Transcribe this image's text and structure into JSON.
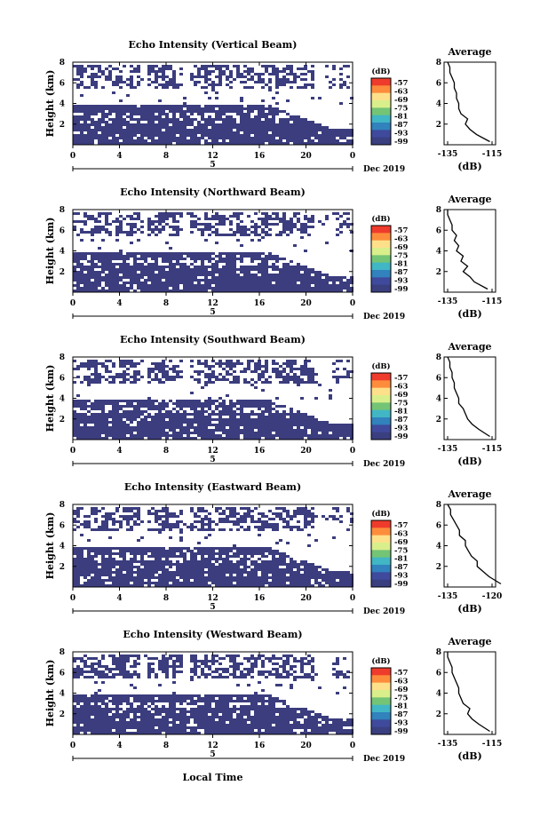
{
  "figure": {
    "xlabel": "Local Time",
    "date_label": "Dec 2019",
    "day_label": "5",
    "profile_title": "Average",
    "profile_xlabel": "(dB)",
    "colorbar_unit": "(dB)",
    "colorbar_ticks": [
      "-57",
      "-63",
      "-69",
      "-75",
      "-81",
      "-87",
      "-93",
      "-99"
    ],
    "colorbar_colors": [
      "#ef3b2c",
      "#fd8d3c",
      "#fee08b",
      "#d9ef8b",
      "#74c476",
      "#41b6c4",
      "#3182bd",
      "#3f4a9c",
      "#3a3f80"
    ],
    "echo_color": "#3b3d7e"
  },
  "chart_data": [
    {
      "type": "heatmap",
      "title": "Echo Intensity (Vertical Beam)",
      "ylabel": "Height (km)",
      "x_ticks": [
        "0",
        "4",
        "8",
        "12",
        "16",
        "20",
        "0"
      ],
      "y_ticks": [
        "8",
        "6",
        "4",
        "2"
      ],
      "xlim": [
        0,
        24
      ],
      "ylim": [
        0,
        8
      ],
      "profile": {
        "xlim": [
          -135,
          -115
        ],
        "x_ticks": [
          "-135",
          "-115"
        ],
        "y_ticks": [
          "8",
          "6",
          "4",
          "2"
        ],
        "height_km": [
          0.3,
          1.0,
          1.5,
          2.0,
          2.5,
          3.0,
          3.5,
          4.0,
          4.5,
          5.0,
          5.5,
          6.0,
          6.5,
          7.0,
          7.5,
          8.0
        ],
        "value_db": [
          -116,
          -122,
          -125,
          -127,
          -126,
          -129,
          -130,
          -130,
          -131,
          -131,
          -132,
          -132,
          -133,
          -134,
          -134,
          -135
        ]
      }
    },
    {
      "type": "heatmap",
      "title": "Echo Intensity (Northward Beam)",
      "ylabel": "Height (km)",
      "x_ticks": [
        "0",
        "4",
        "8",
        "12",
        "16",
        "20",
        "0"
      ],
      "y_ticks": [
        "8",
        "6",
        "4",
        "2"
      ],
      "xlim": [
        0,
        24
      ],
      "ylim": [
        0,
        8
      ],
      "profile": {
        "xlim": [
          -135,
          -115
        ],
        "x_ticks": [
          "-135",
          "-115"
        ],
        "y_ticks": [
          "8",
          "6",
          "4",
          "2"
        ],
        "height_km": [
          0.3,
          1.0,
          1.5,
          2.0,
          2.5,
          3.0,
          3.5,
          4.0,
          4.5,
          5.0,
          5.5,
          6.0,
          6.5,
          7.0,
          7.5,
          8.0
        ],
        "value_db": [
          -117,
          -123,
          -125,
          -128,
          -126,
          -129,
          -128,
          -131,
          -130,
          -132,
          -131,
          -133,
          -133,
          -134,
          -135,
          -135
        ]
      }
    },
    {
      "type": "heatmap",
      "title": "Echo Intensity (Southward Beam)",
      "ylabel": "Height (km)",
      "x_ticks": [
        "0",
        "4",
        "8",
        "12",
        "16",
        "20",
        "0"
      ],
      "y_ticks": [
        "8",
        "6",
        "4",
        "2"
      ],
      "xlim": [
        0,
        24
      ],
      "ylim": [
        0,
        8
      ],
      "profile": {
        "xlim": [
          -135,
          -115
        ],
        "x_ticks": [
          "-135",
          "-115"
        ],
        "y_ticks": [
          "8",
          "6",
          "4",
          "2"
        ],
        "height_km": [
          0.3,
          1.0,
          1.5,
          2.0,
          2.5,
          3.0,
          3.5,
          4.0,
          4.5,
          5.0,
          5.5,
          6.0,
          6.5,
          7.0,
          7.5,
          8.0
        ],
        "value_db": [
          -116,
          -121,
          -124,
          -126,
          -127,
          -128,
          -130,
          -130,
          -131,
          -132,
          -132,
          -133,
          -133,
          -134,
          -134,
          -135
        ]
      }
    },
    {
      "type": "heatmap",
      "title": "Echo Intensity (Eastward Beam)",
      "ylabel": "Height (km)",
      "x_ticks": [
        "0",
        "4",
        "8",
        "12",
        "16",
        "20",
        "0"
      ],
      "y_ticks": [
        "8",
        "6",
        "4",
        "2"
      ],
      "xlim": [
        0,
        24
      ],
      "ylim": [
        0,
        8
      ],
      "profile": {
        "xlim": [
          -135,
          -120
        ],
        "x_ticks": [
          "-135",
          "-120"
        ],
        "y_ticks": [
          "8",
          "6",
          "4",
          "2"
        ],
        "height_km": [
          0.3,
          1.0,
          1.5,
          2.0,
          2.5,
          3.0,
          3.5,
          4.0,
          4.5,
          5.0,
          5.5,
          6.0,
          6.5,
          7.0,
          7.5,
          8.0
        ],
        "value_db": [
          -117,
          -121,
          -123,
          -125,
          -125,
          -127,
          -128,
          -129,
          -129,
          -131,
          -131,
          -132,
          -133,
          -134,
          -134,
          -135
        ]
      }
    },
    {
      "type": "heatmap",
      "title": "Echo Intensity (Westward Beam)",
      "ylabel": "Height (km)",
      "x_ticks": [
        "0",
        "4",
        "8",
        "12",
        "16",
        "20",
        "0"
      ],
      "y_ticks": [
        "8",
        "6",
        "4",
        "2"
      ],
      "xlim": [
        0,
        24
      ],
      "ylim": [
        0,
        8
      ],
      "profile": {
        "xlim": [
          -135,
          -115
        ],
        "x_ticks": [
          "-135",
          "-115"
        ],
        "y_ticks": [
          "8",
          "6",
          "4",
          "2"
        ],
        "height_km": [
          0.3,
          1.0,
          1.5,
          2.0,
          2.5,
          3.0,
          3.5,
          4.0,
          4.5,
          5.0,
          5.5,
          6.0,
          6.5,
          7.0,
          7.5,
          8.0
        ],
        "value_db": [
          -116,
          -121,
          -124,
          -126,
          -125,
          -128,
          -129,
          -130,
          -130,
          -131,
          -132,
          -133,
          -133,
          -134,
          -135,
          -135
        ]
      }
    }
  ]
}
